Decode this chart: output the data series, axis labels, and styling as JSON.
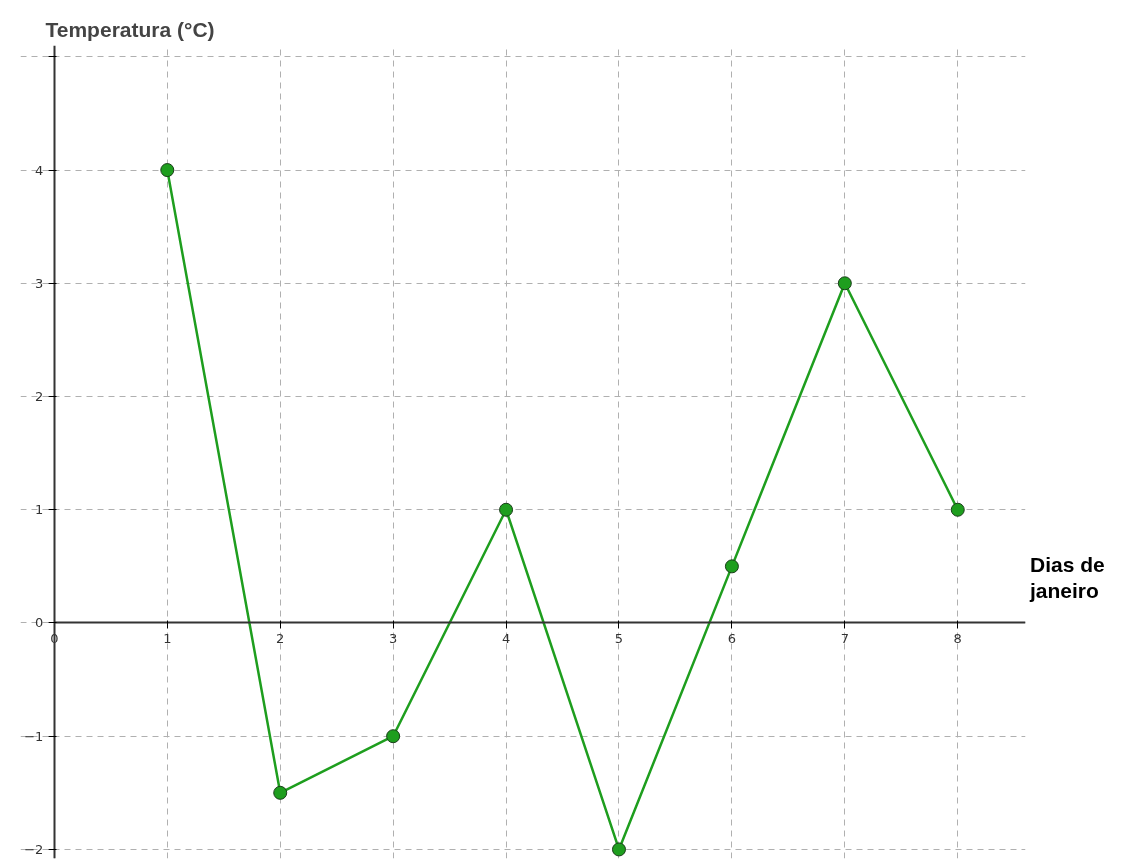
{
  "chart_data": {
    "type": "line",
    "xlabel": "Dias de janeiro",
    "ylabel": "Temperatura (°C)",
    "x": [
      1,
      2,
      3,
      4,
      5,
      6,
      7,
      8
    ],
    "series": [
      {
        "color": "#1e9e1e",
        "values": [
          4,
          -1.5,
          -1,
          1,
          -2,
          0.5,
          3,
          1
        ]
      }
    ],
    "xlim": [
      -0.3,
      8.6
    ],
    "ylim": [
      -2.08,
      5.1
    ],
    "xticks": [
      0,
      1,
      2,
      3,
      4,
      5,
      6,
      7,
      8
    ],
    "yticks": [
      -2,
      -1,
      0,
      1,
      2,
      3,
      4,
      {
        "value": 5,
        "label": null
      }
    ],
    "grid": true,
    "marker": "circle",
    "line_style": "solid"
  }
}
